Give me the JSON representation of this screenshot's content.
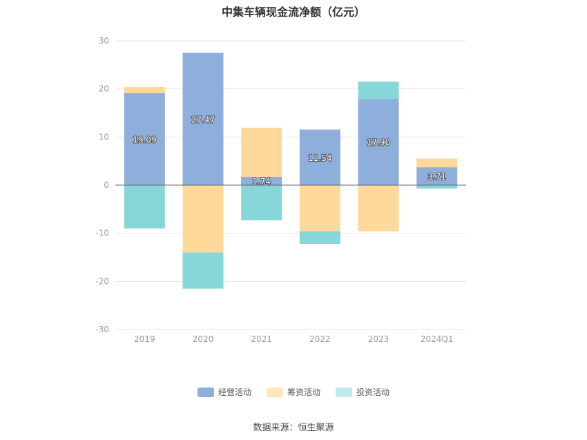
{
  "title": "中集车辆现金流净额（亿元）",
  "source": "数据来源：恒生聚源",
  "colors": {
    "operating": "#8eaedc",
    "financing": "#ffd99a",
    "investing": "#86d6da",
    "grid": "#e6e6e6",
    "axis": "#666666",
    "tick_text": "#999999",
    "label_text": "#ffffff"
  },
  "chart_data": {
    "type": "bar",
    "stacked": true,
    "categories": [
      "2019",
      "2020",
      "2021",
      "2022",
      "2023",
      "2024Q1"
    ],
    "series": [
      {
        "name": "经营活动",
        "key": "operating",
        "values": [
          19.09,
          27.47,
          1.74,
          11.54,
          17.9,
          3.71
        ],
        "labels": [
          "19.09",
          "27.47",
          "1.74",
          "11.54",
          "17.90",
          "3.71"
        ]
      },
      {
        "name": "筹资活动",
        "key": "financing",
        "values": [
          1.3,
          -14.0,
          10.2,
          -9.6,
          -9.6,
          1.8
        ]
      },
      {
        "name": "投资活动",
        "key": "investing",
        "values": [
          -9.0,
          -7.5,
          -7.3,
          -2.6,
          3.6,
          -0.7
        ]
      }
    ],
    "ylim": [
      -30,
      30
    ],
    "yticks": [
      "30",
      "20",
      "10",
      "0",
      "-10",
      "-20",
      "-30"
    ],
    "legend_position": "bottom",
    "grid": true
  }
}
